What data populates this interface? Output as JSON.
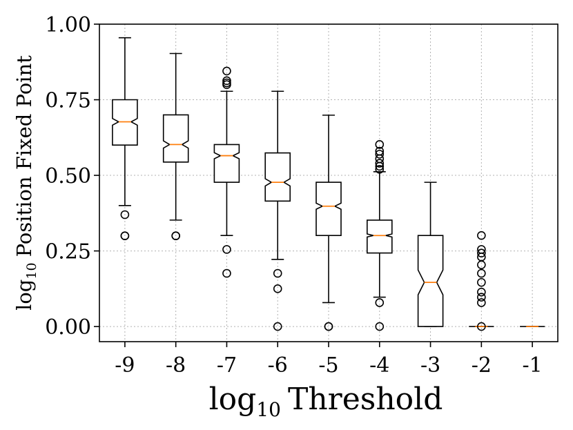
{
  "chart_data": {
    "type": "boxplot",
    "notched": true,
    "xlabel": "Threshold",
    "xlabel_prefix": "log",
    "xlabel_sub": "10",
    "ylabel": "Position Fixed Point",
    "ylabel_prefix": "log",
    "ylabel_sub": "10",
    "ylim": [
      -0.05,
      1.0
    ],
    "yticks": [
      0.0,
      0.25,
      0.5,
      0.75,
      1.0
    ],
    "ytick_labels": [
      "0.00",
      "0.25",
      "0.50",
      "0.75",
      "1.00"
    ],
    "grid": true,
    "median_color": "#ff7f0e",
    "categories": [
      "-9",
      "-8",
      "-7",
      "-6",
      "-5",
      "-4",
      "-3",
      "-2",
      "-1"
    ],
    "boxes": [
      {
        "label": "-9",
        "whislo": 0.4,
        "q1": 0.6,
        "med": 0.677,
        "q3": 0.75,
        "whishi": 0.955,
        "notch_lo": 0.666,
        "notch_hi": 0.688,
        "fliers": [
          0.37,
          0.3,
          0.3
        ]
      },
      {
        "label": "-8",
        "whislo": 0.352,
        "q1": 0.544,
        "med": 0.602,
        "q3": 0.7,
        "whishi": 0.903,
        "notch_lo": 0.59,
        "notch_hi": 0.614,
        "fliers": [
          0.3,
          0.3
        ]
      },
      {
        "label": "-7",
        "whislo": 0.301,
        "q1": 0.477,
        "med": 0.565,
        "q3": 0.602,
        "whishi": 0.778,
        "notch_lo": 0.555,
        "notch_hi": 0.575,
        "fliers": [
          0.845,
          0.813,
          0.806,
          0.8,
          0.255,
          0.176
        ]
      },
      {
        "label": "-6",
        "whislo": 0.222,
        "q1": 0.415,
        "med": 0.477,
        "q3": 0.574,
        "whishi": 0.778,
        "notch_lo": 0.465,
        "notch_hi": 0.489,
        "fliers": [
          0.176,
          0.125,
          0.0
        ]
      },
      {
        "label": "-5",
        "whislo": 0.079,
        "q1": 0.301,
        "med": 0.398,
        "q3": 0.477,
        "whishi": 0.699,
        "notch_lo": 0.388,
        "notch_hi": 0.408,
        "fliers": [
          0.0,
          0.0
        ]
      },
      {
        "label": "-4",
        "whislo": 0.097,
        "q1": 0.243,
        "med": 0.301,
        "q3": 0.352,
        "whishi": 0.512,
        "notch_lo": 0.296,
        "notch_hi": 0.306,
        "fliers": [
          0.602,
          0.58,
          0.57,
          0.555,
          0.54,
          0.53,
          0.52,
          0.079,
          0.0
        ]
      },
      {
        "label": "-3",
        "whislo": 0.0,
        "q1": 0.0,
        "med": 0.146,
        "q3": 0.301,
        "whishi": 0.477,
        "notch_lo": 0.105,
        "notch_hi": 0.187,
        "fliers": []
      },
      {
        "label": "-2",
        "whislo": 0.0,
        "q1": 0.0,
        "med": 0.0,
        "q3": 0.0,
        "whishi": 0.0,
        "notch_lo": 0.0,
        "notch_hi": 0.0,
        "fliers": [
          0.301,
          0.255,
          0.243,
          0.23,
          0.204,
          0.176,
          0.146,
          0.114,
          0.097,
          0.079,
          0.0
        ]
      },
      {
        "label": "-1",
        "whislo": 0.0,
        "q1": 0.0,
        "med": 0.0,
        "q3": 0.0,
        "whishi": 0.0,
        "notch_lo": 0.0,
        "notch_hi": 0.0,
        "fliers": []
      }
    ]
  }
}
